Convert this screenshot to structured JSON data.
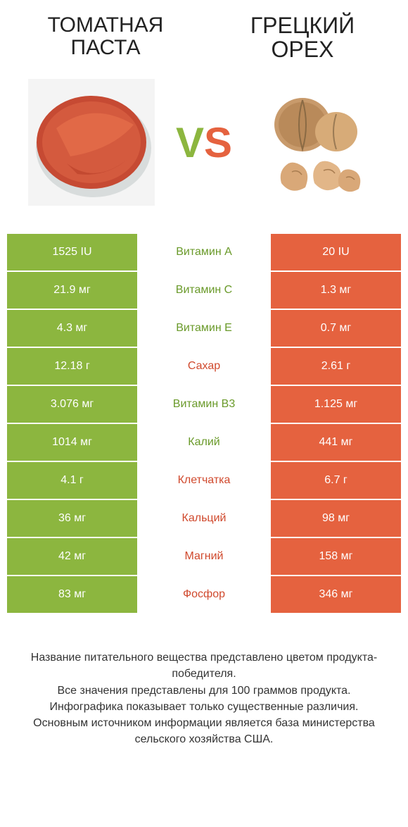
{
  "colors": {
    "green": "#8cb63f",
    "orange": "#e5623f",
    "vs_left": "#8cb63f",
    "vs_right": "#e5623f",
    "mid_green": "#6a9a2a",
    "mid_orange": "#d0492d"
  },
  "header": {
    "left_title": "Томатная паста",
    "right_title": "Грецкий орех",
    "vs": "VS"
  },
  "rows": [
    {
      "label": "Витамин A",
      "left": "1525 IU",
      "right": "20 IU",
      "winner": "left"
    },
    {
      "label": "Витамин C",
      "left": "21.9 мг",
      "right": "1.3 мг",
      "winner": "left"
    },
    {
      "label": "Витамин E",
      "left": "4.3 мг",
      "right": "0.7 мг",
      "winner": "left"
    },
    {
      "label": "Сахар",
      "left": "12.18 г",
      "right": "2.61 г",
      "winner": "right"
    },
    {
      "label": "Витамин B3",
      "left": "3.076 мг",
      "right": "1.125 мг",
      "winner": "left"
    },
    {
      "label": "Калий",
      "left": "1014 мг",
      "right": "441 мг",
      "winner": "left"
    },
    {
      "label": "Клетчатка",
      "left": "4.1 г",
      "right": "6.7 г",
      "winner": "right"
    },
    {
      "label": "Кальций",
      "left": "36 мг",
      "right": "98 мг",
      "winner": "right"
    },
    {
      "label": "Магний",
      "left": "42 мг",
      "right": "158 мг",
      "winner": "right"
    },
    {
      "label": "Фосфор",
      "left": "83 мг",
      "right": "346 мг",
      "winner": "right"
    }
  ],
  "footer": {
    "l1": "Название питательного вещества представлено цветом продукта-победителя.",
    "l2": "Все значения представлены для 100 граммов продукта.",
    "l3": "Инфографика показывает только существенные различия.",
    "l4": "Основным источником информации является база министерства сельского хозяйства США."
  }
}
